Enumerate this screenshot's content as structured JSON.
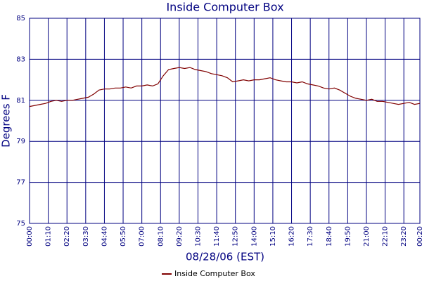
{
  "chart_data": {
    "type": "line",
    "title": "Inside Computer Box",
    "x_label": "08/28/06 (EST)",
    "y_label": "Degrees F",
    "x": [
      0,
      20,
      40,
      60,
      80,
      100,
      120,
      140,
      160,
      180,
      200,
      220,
      240,
      260,
      280,
      300,
      320,
      340,
      360,
      380,
      400,
      420,
      440,
      460,
      480,
      500,
      520,
      540,
      560,
      580,
      600,
      620,
      640,
      660,
      680,
      700,
      720,
      740,
      760,
      780,
      800,
      820,
      840,
      860,
      880,
      900,
      920,
      940,
      960,
      980,
      1000,
      1020,
      1040,
      1060,
      1080,
      1100,
      1120,
      1140,
      1160,
      1180,
      1200,
      1220,
      1240,
      1260,
      1280,
      1300,
      1320,
      1340,
      1360,
      1380,
      1400,
      1420,
      1440,
      1460
    ],
    "series": [
      {
        "name": "Inside Computer Box",
        "color": "#800000",
        "values": [
          80.7,
          80.75,
          80.8,
          80.85,
          80.95,
          81.0,
          80.95,
          81.0,
          81.0,
          81.05,
          81.1,
          81.15,
          81.3,
          81.5,
          81.55,
          81.55,
          81.6,
          81.6,
          81.65,
          81.6,
          81.7,
          81.7,
          81.75,
          81.7,
          81.8,
          82.2,
          82.5,
          82.55,
          82.6,
          82.55,
          82.6,
          82.5,
          82.45,
          82.4,
          82.3,
          82.25,
          82.2,
          82.1,
          81.9,
          81.95,
          82.0,
          81.95,
          82.0,
          82.0,
          82.05,
          82.1,
          82.0,
          81.95,
          81.9,
          81.9,
          81.85,
          81.9,
          81.8,
          81.75,
          81.7,
          81.6,
          81.55,
          81.6,
          81.5,
          81.35,
          81.2,
          81.1,
          81.05,
          81.0,
          81.05,
          80.95,
          80.95,
          80.9,
          80.85,
          80.8,
          80.85,
          80.9,
          80.8,
          80.85
        ]
      }
    ],
    "xlim": [
      0,
      1460
    ],
    "xticks": [
      {
        "value": 0,
        "label": "00:00"
      },
      {
        "value": 70,
        "label": "01:10"
      },
      {
        "value": 140,
        "label": "02:20"
      },
      {
        "value": 210,
        "label": "03:30"
      },
      {
        "value": 280,
        "label": "04:40"
      },
      {
        "value": 350,
        "label": "05:50"
      },
      {
        "value": 420,
        "label": "07:00"
      },
      {
        "value": 490,
        "label": "08:10"
      },
      {
        "value": 560,
        "label": "09:20"
      },
      {
        "value": 630,
        "label": "10:30"
      },
      {
        "value": 700,
        "label": "11:40"
      },
      {
        "value": 770,
        "label": "12:50"
      },
      {
        "value": 840,
        "label": "14:00"
      },
      {
        "value": 910,
        "label": "15:10"
      },
      {
        "value": 980,
        "label": "16:20"
      },
      {
        "value": 1050,
        "label": "17:30"
      },
      {
        "value": 1120,
        "label": "18:40"
      },
      {
        "value": 1190,
        "label": "19:50"
      },
      {
        "value": 1260,
        "label": "21:00"
      },
      {
        "value": 1330,
        "label": "22:10"
      },
      {
        "value": 1400,
        "label": "23:20"
      },
      {
        "value": 1460,
        "label": "00:20"
      }
    ],
    "ylim": [
      75,
      85
    ],
    "yticks": [
      75,
      77,
      79,
      81,
      83,
      85
    ],
    "grid": true,
    "legend": "bottom"
  }
}
